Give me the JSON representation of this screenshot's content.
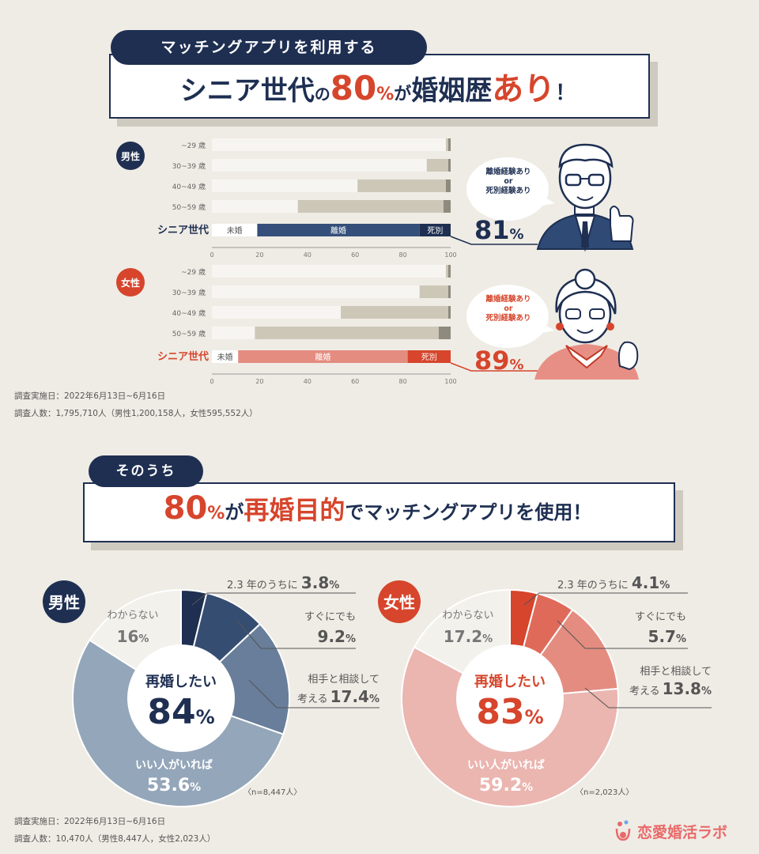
{
  "header1": {
    "tag": "マッチングアプリを利用する",
    "parts": [
      "シニア世代",
      "の",
      "80",
      "%",
      "が",
      "婚姻歴",
      "あり",
      "！"
    ]
  },
  "header2": {
    "tag": "そのうち",
    "parts": [
      "80",
      "%",
      "が",
      "再婚目的",
      "でマッチングアプリを使用！"
    ]
  },
  "colors": {
    "navy": "#1e2f52",
    "red": "#d6452c",
    "beige": "#cdc7b8",
    "paper": "#efece5"
  },
  "chart_data": [
    {
      "type": "bar",
      "group": "男性",
      "orientation": "horizontal-stacked",
      "categories": [
        "~29 歳",
        "30~39 歳",
        "40~49 歳",
        "50~59 歳",
        "シニア世代"
      ],
      "series": [
        {
          "name": "未婚",
          "values": [
            98,
            90,
            61,
            36,
            19
          ]
        },
        {
          "name": "離婚",
          "values": [
            1,
            9,
            37,
            61,
            68
          ]
        },
        {
          "name": "死別",
          "values": [
            1,
            1,
            2,
            3,
            13
          ]
        }
      ],
      "xlim": [
        0,
        100
      ],
      "xticks": [
        0,
        20,
        40,
        60,
        80,
        100
      ],
      "callout": {
        "text": [
          "離婚経験あり",
          "or",
          "死別経験あり"
        ],
        "value": "81",
        "unit": "%"
      }
    },
    {
      "type": "bar",
      "group": "女性",
      "orientation": "horizontal-stacked",
      "categories": [
        "~29 歳",
        "30~39 歳",
        "40~49 歳",
        "50~59 歳",
        "シニア世代"
      ],
      "series": [
        {
          "name": "未婚",
          "values": [
            98,
            87,
            54,
            18,
            11
          ]
        },
        {
          "name": "離婚",
          "values": [
            1,
            12,
            45,
            77,
            71
          ]
        },
        {
          "name": "死別",
          "values": [
            1,
            1,
            1,
            5,
            18
          ]
        }
      ],
      "xlim": [
        0,
        100
      ],
      "xticks": [
        0,
        20,
        40,
        60,
        80,
        100
      ],
      "callout": {
        "text": [
          "離婚経験あり",
          "or",
          "死別経験あり"
        ],
        "value": "89",
        "unit": "%"
      }
    },
    {
      "type": "pie",
      "group": "男性",
      "center_label": "再婚したい",
      "center_value": "84",
      "center_unit": "%",
      "n": "〈n=8,447人〉",
      "slices": [
        {
          "label": "2.3 年のうちに",
          "value": 3.8,
          "color": "#1e2f52"
        },
        {
          "label": "すぐにでも",
          "value": 9.2,
          "color": "#364d72"
        },
        {
          "label": "相手と相談して考える",
          "value": 17.4,
          "color": "#687e9a"
        },
        {
          "label": "いい人がいれば",
          "value": 53.6,
          "color": "#94a6b9"
        },
        {
          "label": "わからない",
          "value": 16,
          "color": "#f3f1ec"
        }
      ]
    },
    {
      "type": "pie",
      "group": "女性",
      "center_label": "再婚したい",
      "center_value": "83",
      "center_unit": "%",
      "n": "〈n=2,023人〉",
      "slices": [
        {
          "label": "2.3 年のうちに",
          "value": 4.1,
          "color": "#d6452c"
        },
        {
          "label": "すぐにでも",
          "value": 5.7,
          "color": "#e06a5a"
        },
        {
          "label": "相手と相談して考える",
          "value": 13.8,
          "color": "#e48c80"
        },
        {
          "label": "いい人がいれば",
          "value": 59.2,
          "color": "#ebb5b0"
        },
        {
          "label": "わからない",
          "value": 17.2,
          "color": "#f3f1ec"
        }
      ]
    }
  ],
  "labels": {
    "male": "男性",
    "female": "女性",
    "pie_male": {
      "s1_text": "2.3 年のうちに",
      "s1_val": "3.8",
      "s1_unit": "%",
      "s2_text": "すぐにでも",
      "s2_val": "9.2",
      "s2_unit": "%",
      "s3_text1": "相手と相談して",
      "s3_text2": "考える",
      "s3_val": "17.4",
      "s3_unit": "%",
      "s4_text": "いい人がいれば",
      "s4_val": "53.6",
      "s4_unit": "%",
      "s5_text": "わからない",
      "s5_val": "16",
      "s5_unit": "%"
    },
    "pie_female": {
      "s1_text": "2.3 年のうちに",
      "s1_val": "4.1",
      "s1_unit": "%",
      "s2_text": "すぐにでも",
      "s2_val": "5.7",
      "s2_unit": "%",
      "s3_text1": "相手と相談して",
      "s3_text2": "考える",
      "s3_val": "13.8",
      "s3_unit": "%",
      "s4_text": "いい人がいれば",
      "s4_val": "59.2",
      "s4_unit": "%",
      "s5_text": "わからない",
      "s5_val": "17.2",
      "s5_unit": "%"
    }
  },
  "notes1": [
    "調査実施日：2022年6月13日~6月16日",
    "調査人数：1,795,710人（男性1,200,158人，女性595,552人）"
  ],
  "notes2": [
    "調査実施日：2022年6月13日~6月16日",
    "調査人数：10,470人（男性8,447人，女性2,023人）"
  ],
  "logo": "恋愛婚活ラボ"
}
